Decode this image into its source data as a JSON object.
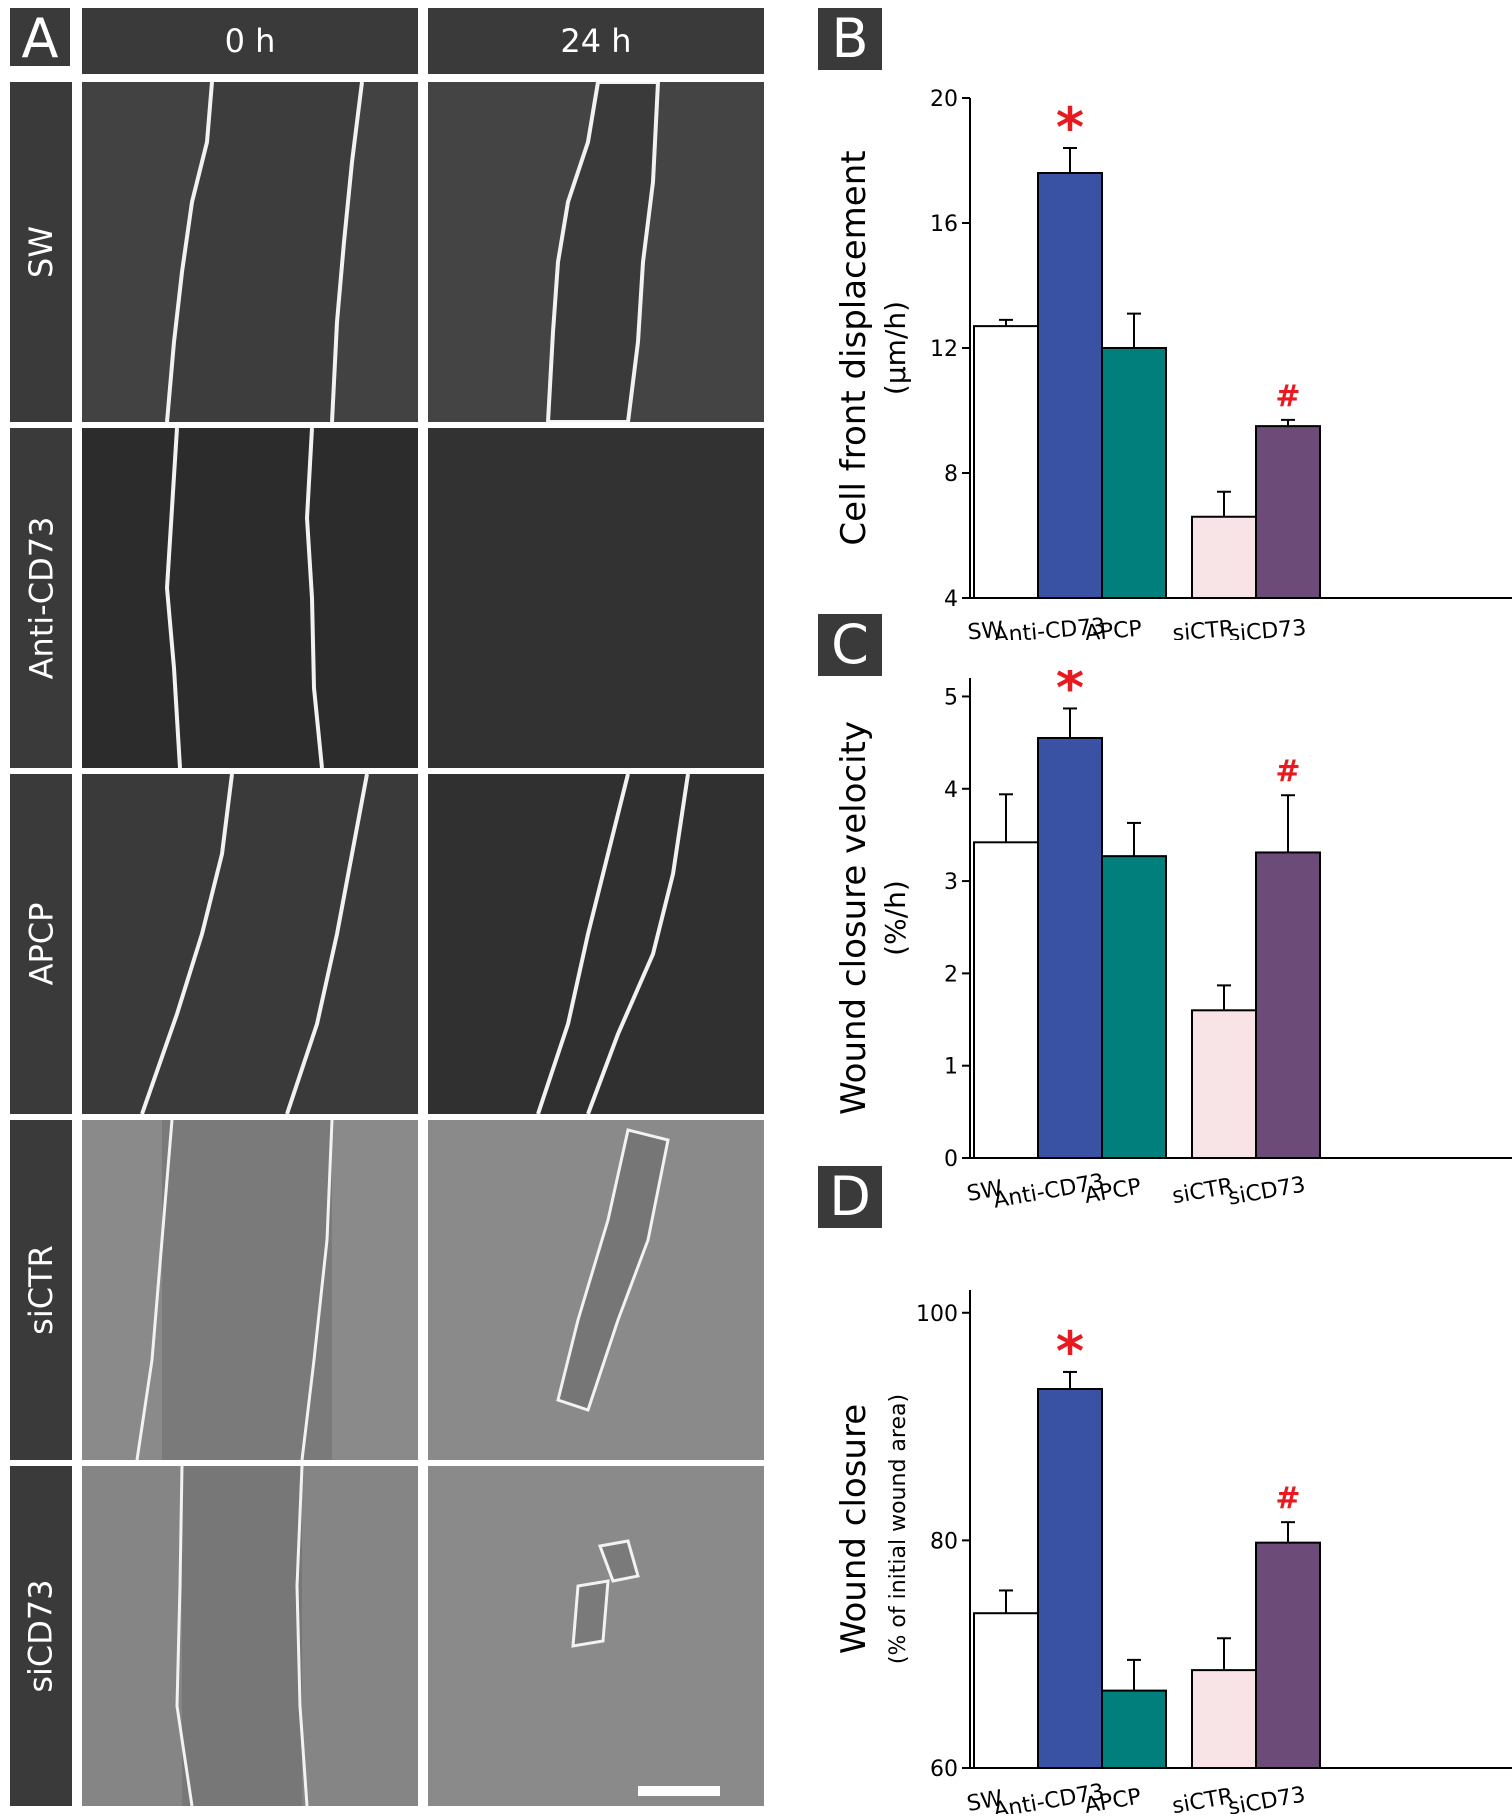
{
  "panel_a": {
    "letter": "A",
    "columns": [
      "0 h",
      "24 h"
    ],
    "rows": [
      "SW",
      "Anti-CD73",
      "APCP",
      "siCTR",
      "siCD73"
    ]
  },
  "colors": {
    "bar_fills": [
      "#ffffff",
      "#3a52a3",
      "#007f7c",
      "#f8e4e6",
      "#6c4b78"
    ],
    "significance": "#e8191f",
    "label_box": "#3a3a3a"
  },
  "chart_data": [
    {
      "panel": "B",
      "type": "bar",
      "categories": [
        "SW",
        "Anti-CD73",
        "APCP",
        "siCTR",
        "siCD73"
      ],
      "values": [
        12.7,
        17.6,
        12.0,
        6.6,
        9.5
      ],
      "errors": [
        0.2,
        0.8,
        1.1,
        0.8,
        0.2
      ],
      "markers": [
        "",
        "*",
        "",
        "",
        "#"
      ],
      "ylabel": [
        "Cell front displacement",
        "(µm/h)"
      ],
      "ylim": [
        4,
        20
      ],
      "ticks": [
        4,
        8,
        12,
        16,
        20
      ]
    },
    {
      "panel": "C",
      "type": "bar",
      "categories": [
        "SW",
        "Anti-CD73",
        "APCP",
        "siCTR",
        "siCD73"
      ],
      "values": [
        3.42,
        4.55,
        3.27,
        1.6,
        3.31
      ],
      "errors": [
        0.52,
        0.32,
        0.36,
        0.27,
        0.62
      ],
      "markers": [
        "",
        "*",
        "",
        "",
        "#"
      ],
      "ylabel": [
        "Wound closure velocity",
        "(%/h)"
      ],
      "ylim": [
        0,
        5.2
      ],
      "ticks": [
        0,
        1,
        2,
        3,
        4,
        5
      ]
    },
    {
      "panel": "D",
      "type": "bar",
      "categories": [
        "SW",
        "Anti-CD73",
        "APCP",
        "siCTR",
        "siCD73"
      ],
      "values": [
        73.6,
        93.3,
        66.8,
        68.6,
        79.8
      ],
      "errors": [
        2.0,
        1.5,
        2.7,
        2.8,
        1.8
      ],
      "markers": [
        "",
        "*",
        "",
        "",
        "#"
      ],
      "ylabel": [
        "Wound closure",
        "(% of initial wound area)"
      ],
      "ylim": [
        60,
        102
      ],
      "ticks": [
        60,
        80,
        100
      ]
    }
  ]
}
